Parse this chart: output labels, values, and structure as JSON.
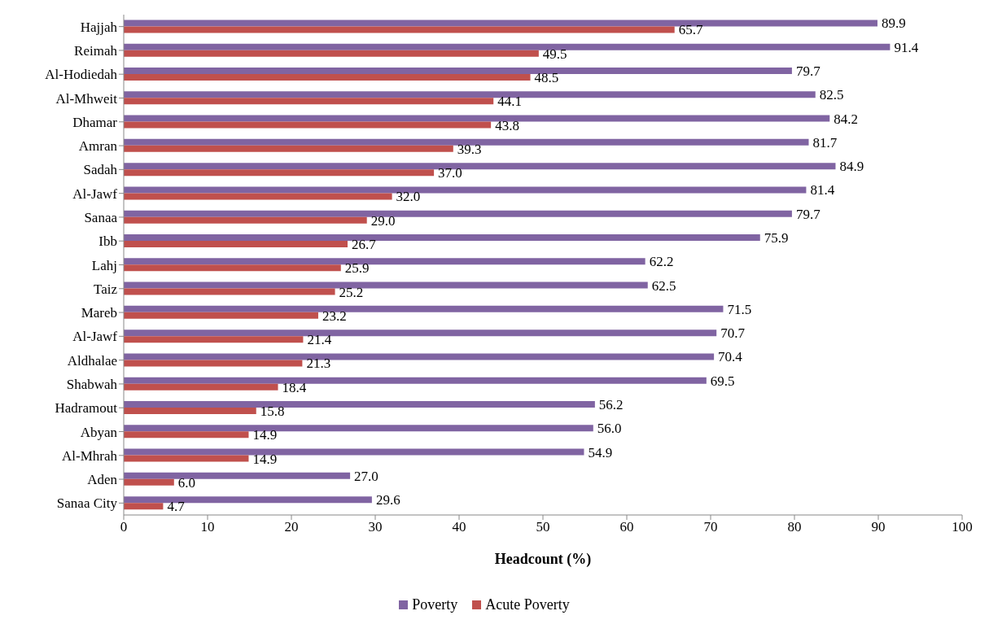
{
  "chart_data": {
    "type": "bar",
    "orientation": "horizontal",
    "xlabel": "Headcount (%)",
    "categories": [
      "Hajjah",
      "Reimah",
      "Al-Hodiedah",
      "Al-Mhweit",
      "Dhamar",
      "Amran",
      "Sadah",
      "Al-Jawf",
      "Sanaa",
      "Ibb",
      "Lahj",
      "Taiz",
      "Mareb",
      "Al-Jawf",
      "Aldhalae",
      "Shabwah",
      "Hadramout",
      "Abyan",
      "Al-Mhrah",
      "Aden",
      "Sanaa City"
    ],
    "series": [
      {
        "name": "Poverty",
        "color": "#8064a2",
        "values": [
          89.9,
          91.4,
          79.7,
          82.5,
          84.2,
          81.7,
          84.9,
          81.4,
          79.7,
          75.9,
          62.2,
          62.5,
          71.5,
          70.7,
          70.4,
          69.5,
          56.2,
          56.0,
          54.9,
          27.0,
          29.6
        ],
        "value_labels": [
          "89.9",
          "91.4",
          "79.7",
          "82.5",
          "84.2",
          "81.7",
          "84.9",
          "81.4",
          "79.7",
          "75.9",
          "62.2",
          "62.5",
          "71.5",
          "70.7",
          "70.4",
          "69.5",
          "56.2",
          "56.0",
          "54.9",
          "27.0",
          "29.6"
        ]
      },
      {
        "name": "Acute Poverty",
        "color": "#c0504d",
        "values": [
          65.7,
          49.5,
          48.5,
          44.1,
          43.8,
          39.3,
          37.0,
          32.0,
          29.0,
          26.7,
          25.9,
          25.2,
          23.2,
          21.4,
          21.3,
          18.4,
          15.8,
          14.9,
          14.9,
          6.0,
          4.7
        ],
        "value_labels": [
          "65.7",
          "49.5",
          "48.5",
          "44.1",
          "43.8",
          "39.3",
          "37.0",
          "32.0",
          "29.0",
          "26.7",
          "25.9",
          "25.2",
          "23.2",
          "21.4",
          "21.3",
          "18.4",
          "15.8",
          "14.9",
          "14.9",
          "6.0",
          "4.7"
        ]
      }
    ],
    "xlim": [
      0,
      100
    ],
    "xticks": [
      0,
      10,
      20,
      30,
      40,
      50,
      60,
      70,
      80,
      90,
      100
    ],
    "grid": false,
    "legend": "bottom"
  }
}
